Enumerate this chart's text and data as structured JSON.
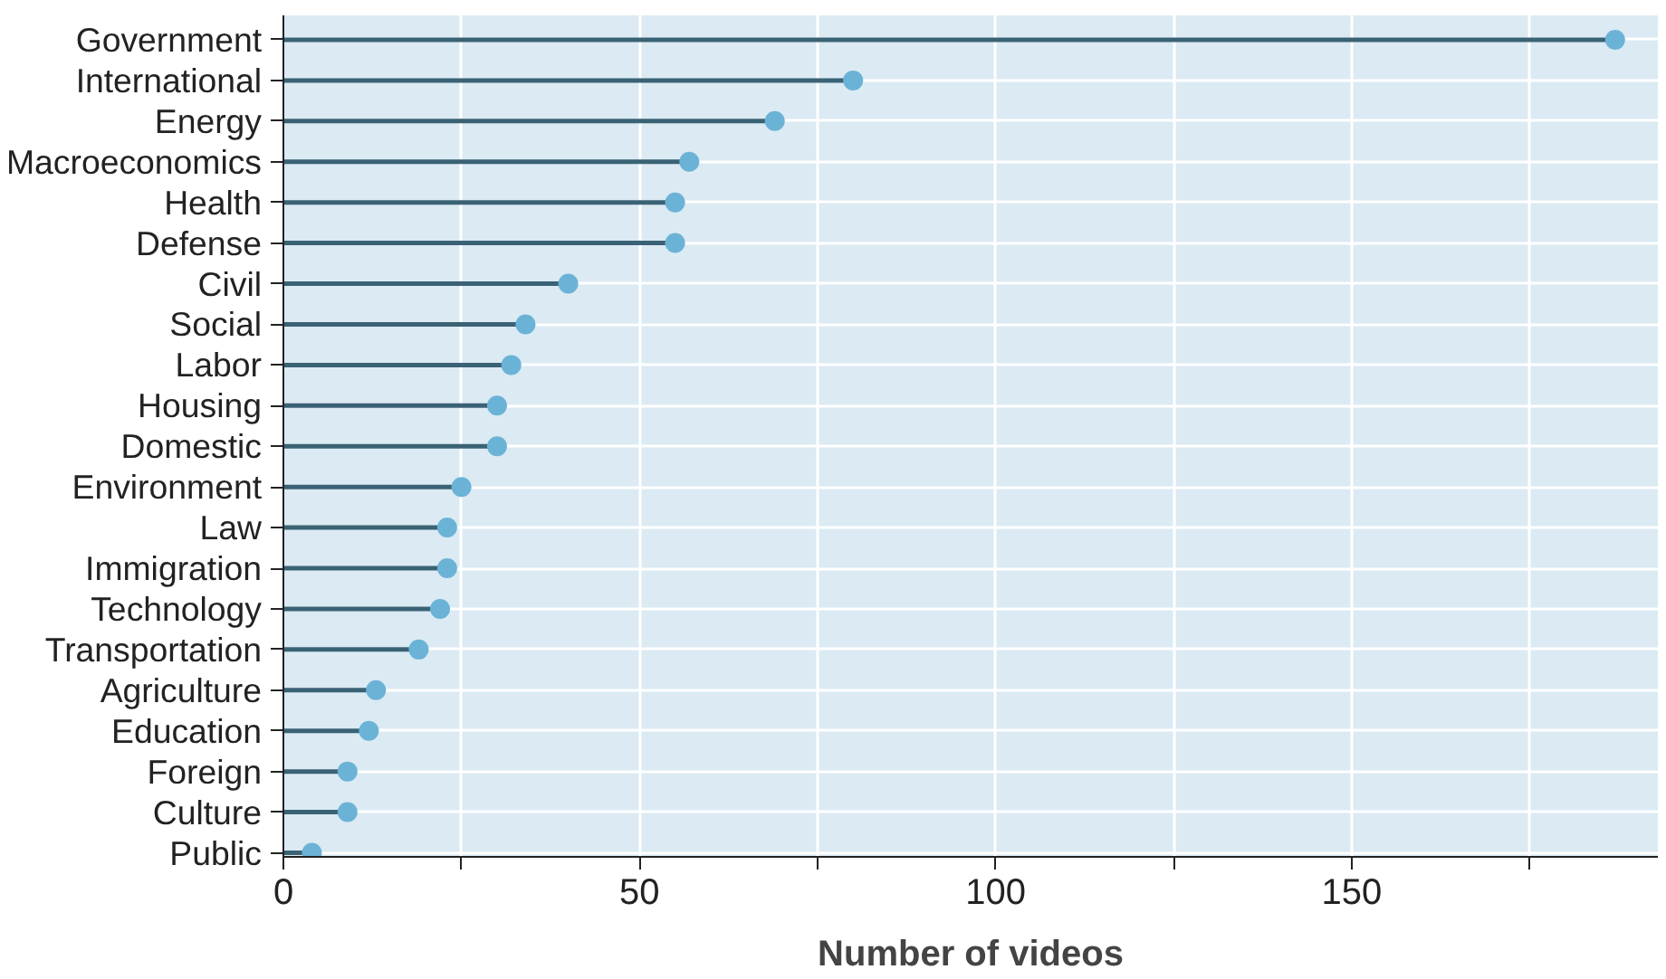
{
  "chart_data": {
    "type": "lollipop",
    "orientation": "horizontal",
    "xlabel": "Number of videos",
    "categories": [
      "Government",
      "International",
      "Energy",
      "Macroeconomics",
      "Health",
      "Defense",
      "Civil",
      "Social",
      "Labor",
      "Housing",
      "Domestic",
      "Environment",
      "Law",
      "Immigration",
      "Technology",
      "Transportation",
      "Agriculture",
      "Education",
      "Foreign",
      "Culture",
      "Public"
    ],
    "values": [
      187,
      80,
      69,
      57,
      55,
      55,
      40,
      34,
      32,
      30,
      30,
      25,
      23,
      23,
      22,
      19,
      13,
      12,
      9,
      9,
      4
    ],
    "color": "#6bb3d6",
    "xlim": [
      0,
      193
    ],
    "xticks": [
      0,
      {
        "value": 25,
        "label": null
      },
      50,
      {
        "value": 75,
        "label": null
      },
      100,
      {
        "value": 125,
        "label": null
      },
      150,
      {
        "value": 175,
        "label": null
      }
    ],
    "grid": true,
    "marker": "circle"
  }
}
